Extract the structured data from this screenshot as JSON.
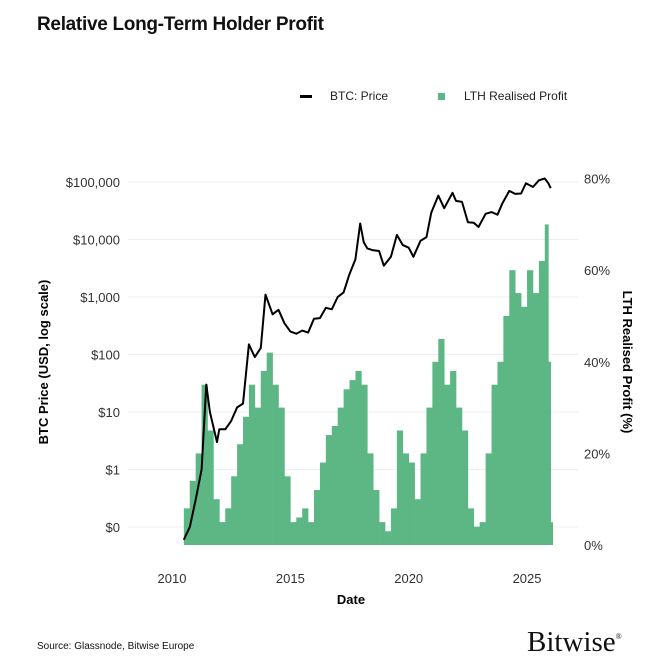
{
  "title": "Relative Long-Term Holder Profit",
  "source": "Source: Glassnode, Bitwise Europe",
  "logo": "Bitwise",
  "colors": {
    "price": "#000000",
    "profit": "#5cb784",
    "grid": "#eeeeee"
  },
  "chart_data": {
    "type": "line+area",
    "title": "Relative Long-Term Holder Profit",
    "xlabel": "Date",
    "ylabel": "BTC Price (USD, log scale)",
    "y2label": "LTH Realised Profit (%)",
    "x_ticks": [
      "2010",
      "2015",
      "2020",
      "2025"
    ],
    "x_tick_values": [
      2010,
      2015,
      2020,
      2025
    ],
    "y_ticks": [
      "$0",
      "$1",
      "$10",
      "$100",
      "$1,000",
      "$10,000",
      "$100,000"
    ],
    "y_tick_values": [
      0.1,
      1,
      10,
      100,
      1000,
      10000,
      100000
    ],
    "y_scale": "log",
    "y2_ticks": [
      "0%",
      "20%",
      "40%",
      "60%",
      "80%"
    ],
    "y2_tick_values": [
      0,
      20,
      40,
      60,
      80
    ],
    "grid": true,
    "legend_position": "top",
    "legend": [
      "BTC: Price",
      "LTH Realised Profit"
    ],
    "series": [
      {
        "name": "BTC: Price",
        "axis": "left",
        "kind": "line",
        "x": [
          2010.5,
          2010.75,
          2011.0,
          2011.25,
          2011.45,
          2011.6,
          2011.9,
          2012.0,
          2012.25,
          2012.5,
          2012.75,
          2013.0,
          2013.25,
          2013.5,
          2013.75,
          2013.95,
          2014.25,
          2014.5,
          2014.75,
          2015.0,
          2015.25,
          2015.5,
          2015.75,
          2016.0,
          2016.25,
          2016.5,
          2016.75,
          2017.0,
          2017.25,
          2017.5,
          2017.75,
          2017.95,
          2018.1,
          2018.25,
          2018.5,
          2018.75,
          2018.95,
          2019.25,
          2019.5,
          2019.75,
          2020.0,
          2020.2,
          2020.5,
          2020.75,
          2020.95,
          2021.25,
          2021.5,
          2021.85,
          2022.0,
          2022.25,
          2022.5,
          2022.75,
          2022.95,
          2023.25,
          2023.5,
          2023.75,
          2023.95,
          2024.25,
          2024.5,
          2024.75,
          2024.95,
          2025.25,
          2025.5,
          2025.75,
          2025.9,
          2026.0
        ],
        "values": [
          0.06,
          0.1,
          0.3,
          1,
          30,
          10,
          3,
          5,
          5,
          7,
          12,
          14,
          150,
          90,
          130,
          1100,
          500,
          600,
          350,
          250,
          230,
          260,
          240,
          420,
          430,
          650,
          610,
          1000,
          1200,
          2500,
          4500,
          19000,
          9000,
          7000,
          6500,
          6300,
          3500,
          5000,
          12000,
          8000,
          7200,
          5000,
          9500,
          11000,
          29000,
          58000,
          35000,
          65000,
          47000,
          45000,
          20000,
          19500,
          16500,
          28000,
          30000,
          27000,
          42000,
          70000,
          62000,
          63000,
          95000,
          82000,
          107000,
          115000,
          95000,
          78000
        ]
      },
      {
        "name": "LTH Realised Profit",
        "axis": "right",
        "kind": "area",
        "x": [
          2010.5,
          2010.75,
          2011.0,
          2011.25,
          2011.5,
          2011.75,
          2012.0,
          2012.25,
          2012.5,
          2012.75,
          2013.0,
          2013.25,
          2013.5,
          2013.75,
          2014.0,
          2014.25,
          2014.5,
          2014.75,
          2015.0,
          2015.25,
          2015.5,
          2015.75,
          2016.0,
          2016.25,
          2016.5,
          2016.75,
          2017.0,
          2017.25,
          2017.5,
          2017.75,
          2018.0,
          2018.25,
          2018.5,
          2018.75,
          2019.0,
          2019.25,
          2019.5,
          2019.75,
          2020.0,
          2020.25,
          2020.5,
          2020.75,
          2021.0,
          2021.25,
          2021.5,
          2021.75,
          2022.0,
          2022.25,
          2022.5,
          2022.75,
          2023.0,
          2023.25,
          2023.5,
          2023.75,
          2024.0,
          2024.25,
          2024.5,
          2024.75,
          2025.0,
          2025.25,
          2025.5,
          2025.75,
          2025.9,
          2026.0
        ],
        "values": [
          8,
          14,
          20,
          35,
          25,
          10,
          5,
          8,
          15,
          22,
          28,
          35,
          30,
          38,
          42,
          35,
          30,
          15,
          5,
          6,
          8,
          5,
          12,
          18,
          24,
          26,
          30,
          34,
          36,
          38,
          35,
          20,
          12,
          5,
          3,
          8,
          25,
          20,
          18,
          10,
          20,
          30,
          40,
          45,
          35,
          38,
          30,
          25,
          8,
          4,
          5,
          20,
          35,
          40,
          50,
          60,
          55,
          52,
          60,
          55,
          62,
          70,
          40,
          5
        ]
      }
    ]
  }
}
